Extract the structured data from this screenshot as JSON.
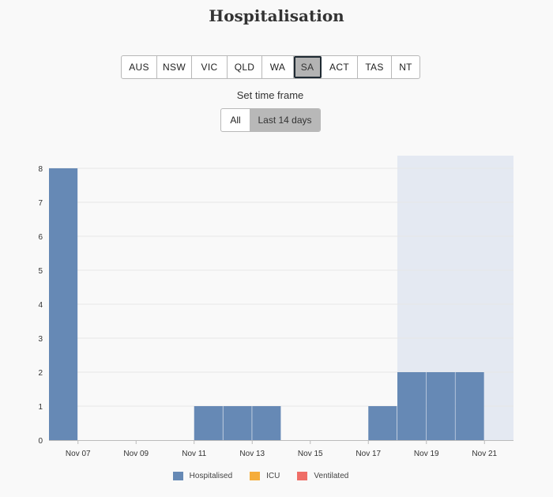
{
  "title": "Hospitalisation",
  "regions": [
    {
      "label": "AUS",
      "active": false
    },
    {
      "label": "NSW",
      "active": false
    },
    {
      "label": "VIC",
      "active": false
    },
    {
      "label": "QLD",
      "active": false
    },
    {
      "label": "WA",
      "active": false
    },
    {
      "label": "SA",
      "active": true
    },
    {
      "label": "ACT",
      "active": false
    },
    {
      "label": "TAS",
      "active": false
    },
    {
      "label": "NT",
      "active": false
    }
  ],
  "time_frame": {
    "label": "Set time frame",
    "options": [
      {
        "label": "All",
        "active": false
      },
      {
        "label": "Last 14 days",
        "active": true
      }
    ]
  },
  "colors": {
    "hospitalised": "#6689b5",
    "icu": "#f5ad3b",
    "ventilated": "#ef6e67",
    "shade": "#e4e9f2",
    "grid": "#e6e6e6"
  },
  "chart_data": {
    "type": "bar",
    "categories": [
      "Nov 07",
      "Nov 08",
      "Nov 09",
      "Nov 10",
      "Nov 11",
      "Nov 12",
      "Nov 13",
      "Nov 14",
      "Nov 15",
      "Nov 16",
      "Nov 17",
      "Nov 18",
      "Nov 19",
      "Nov 20",
      "Nov 21",
      "Nov 22"
    ],
    "series": [
      {
        "name": "Hospitalised",
        "values": [
          8,
          0,
          0,
          0,
          0,
          1,
          1,
          1,
          0,
          0,
          0,
          1,
          2,
          2,
          2,
          0
        ]
      },
      {
        "name": "ICU",
        "values": [
          0,
          0,
          0,
          0,
          0,
          0,
          0,
          0,
          0,
          0,
          0,
          0,
          0,
          0,
          0,
          0
        ]
      },
      {
        "name": "Ventilated",
        "values": [
          0,
          0,
          0,
          0,
          0,
          0,
          0,
          0,
          0,
          0,
          0,
          0,
          0,
          0,
          0,
          0
        ]
      }
    ],
    "xticks": [
      "Nov 07",
      "Nov 09",
      "Nov 11",
      "Nov 13",
      "Nov 15",
      "Nov 17",
      "Nov 19",
      "Nov 21"
    ],
    "yticks": [
      0,
      1,
      2,
      3,
      4,
      5,
      6,
      7,
      8
    ],
    "ylim": [
      0,
      8
    ],
    "shaded_from": "Nov 19",
    "grid": true,
    "legend": "bottom"
  }
}
